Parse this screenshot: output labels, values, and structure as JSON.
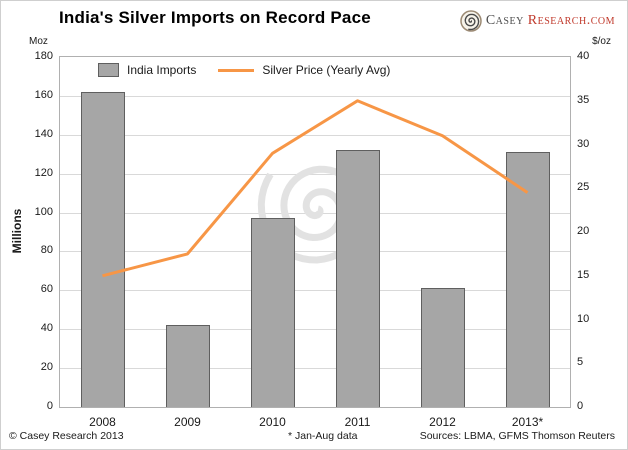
{
  "header": {
    "title": "India's Silver Imports on Record Pace",
    "logo": {
      "primary": "Casey ",
      "secondary": "Research",
      "tld": ".com"
    }
  },
  "footer": {
    "copyright": "© Casey Research 2013",
    "note": "* Jan-Aug data",
    "sources": "Sources: LBMA, GFMS Thomson Reuters"
  },
  "chart_data": {
    "type": "bar",
    "title": "India's Silver Imports on Record Pace",
    "categories": [
      "2008",
      "2009",
      "2010",
      "2011",
      "2012",
      "2013*"
    ],
    "series": [
      {
        "name": "India Imports",
        "type": "bar",
        "axis": "left",
        "color": "#a6a6a6",
        "values": [
          162,
          42,
          97,
          132,
          61,
          131
        ]
      },
      {
        "name": "Silver Price (Yearly Avg)",
        "type": "line",
        "axis": "right",
        "color": "#f79646",
        "values": [
          15,
          17.5,
          29,
          35,
          31,
          24.5
        ]
      }
    ],
    "left_axis": {
      "label": "Millions",
      "unit": "Moz",
      "min": 0,
      "max": 180,
      "step": 20
    },
    "right_axis": {
      "unit": "$/oz",
      "min": 0,
      "max": 40,
      "step": 5
    },
    "grid": true,
    "legend_position": "top-center"
  }
}
